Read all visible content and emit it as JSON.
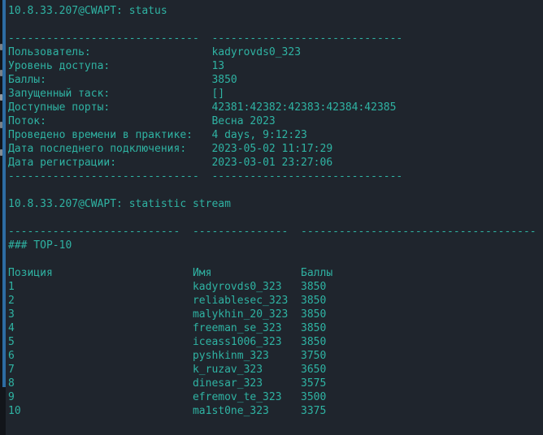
{
  "colors": {
    "terminal_background": "#1f252d",
    "terminal_foreground": "#2fb3a3",
    "window_edge_accent": "#2d6ca3",
    "desktop_strip": "#12151a"
  },
  "session": {
    "prompt": "10.8.33.207@CWAPT:",
    "status_command": "status",
    "stream_command": "statistic stream"
  },
  "status": {
    "separator": "------------------------------  ------------------------------",
    "fields": [
      {
        "label": "Пользователь:",
        "value": "kadyrovds0_323"
      },
      {
        "label": "Уровень доступа:",
        "value": "13"
      },
      {
        "label": "Баллы:",
        "value": "3850"
      },
      {
        "label": "Запущенный таск:",
        "value": "[]"
      },
      {
        "label": "Доступные порты:",
        "value": "42381:42382:42383:42384:42385"
      },
      {
        "label": "Поток:",
        "value": "Весна 2023"
      },
      {
        "label": "Проведено времени в практике:",
        "value": "4 days, 9:12:23"
      },
      {
        "label": "Дата последнего подключения:",
        "value": "2023-05-02 11:17:29"
      },
      {
        "label": "Дата регистрации:",
        "value": "2023-03-01 23:27:06"
      }
    ]
  },
  "stream": {
    "separator": "---------------------------  ---------------  -------------------------------------",
    "heading": "### TOP-10",
    "table": {
      "headers": {
        "position": "Позиция",
        "name": "Имя",
        "points": "Баллы"
      },
      "rows": [
        {
          "position": "1",
          "name": "kadyrovds0_323",
          "points": "3850"
        },
        {
          "position": "2",
          "name": "reliablesec_323",
          "points": "3850"
        },
        {
          "position": "3",
          "name": "malykhin_20_323",
          "points": "3850"
        },
        {
          "position": "4",
          "name": "freeman_se_323",
          "points": "3850"
        },
        {
          "position": "5",
          "name": "iceass1006_323",
          "points": "3850"
        },
        {
          "position": "6",
          "name": "pyshkinm_323",
          "points": "3750"
        },
        {
          "position": "7",
          "name": "k_ruzav_323",
          "points": "3650"
        },
        {
          "position": "8",
          "name": "dinesar_323",
          "points": "3575"
        },
        {
          "position": "9",
          "name": "efremov_te_323",
          "points": "3500"
        },
        {
          "position": "10",
          "name": "ma1st0ne_323",
          "points": "3375"
        }
      ]
    }
  }
}
